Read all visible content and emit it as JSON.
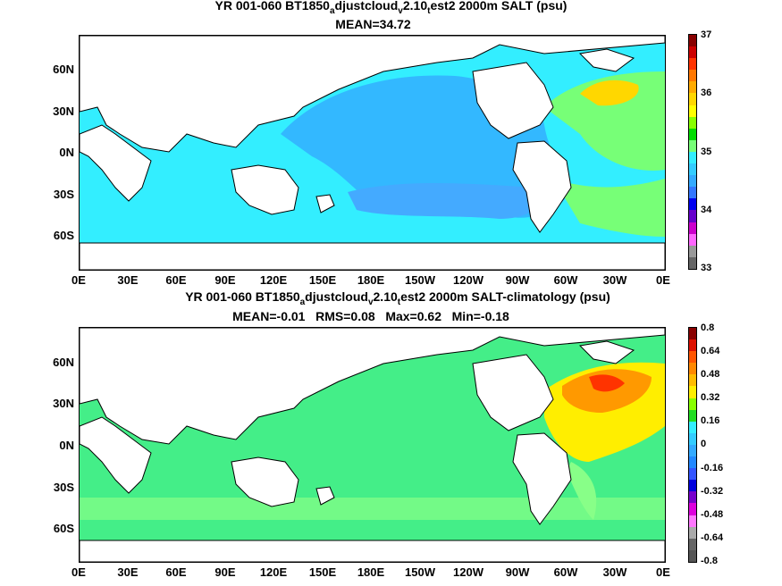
{
  "top": {
    "title_pre": "YR 001-060 BT1850",
    "title_s1": "a",
    "title_m1": "djustcloud",
    "title_s2": "v",
    "title_m2": "2.10",
    "title_s3": "t",
    "title_post": "est2 2000m SALT (psu)",
    "subtitle": "MEAN=34.72",
    "cbar_labels": [
      "37",
      "36",
      "35",
      "34",
      "33"
    ]
  },
  "bottom": {
    "title_pre": "YR 001-060 BT1850",
    "title_s1": "a",
    "title_m1": "djustcloud",
    "title_s2": "v",
    "title_m2": "2.10",
    "title_s3": "t",
    "title_post": "est2 2000m SALT-climatology (psu)",
    "subtitle": "MEAN=-0.01   RMS=0.08   Max=0.62   Min=-0.18",
    "cbar_labels": [
      "0.8",
      "0.64",
      "0.48",
      "0.32",
      "0.16",
      "0",
      "-0.16",
      "-0.32",
      "-0.48",
      "-0.64",
      "-0.8"
    ]
  },
  "lat_labels": [
    "60N",
    "30N",
    "0N",
    "30S",
    "60S"
  ],
  "lon_labels": [
    "0E",
    "30E",
    "60E",
    "90E",
    "120E",
    "150E",
    "180E",
    "150W",
    "120W",
    "90W",
    "60W",
    "30W",
    "0E"
  ],
  "colors": {
    "land": "#ffffff",
    "salt_base": "#33eeff",
    "salt_pacific": "#33b8ff",
    "salt_pacific_deep": "#44aaff",
    "salt_atlantic": "#77ff77",
    "salt_high": "#ffd700",
    "anom_base": "#44ee88",
    "anom_light": "#88ff88",
    "anom_yellow": "#ffee00",
    "anom_orange": "#ff9900",
    "anom_red": "#ff3300"
  },
  "top_cbar_colors": [
    "#880000",
    "#cc0000",
    "#ff3300",
    "#ff7700",
    "#ffaa00",
    "#ffd700",
    "#ffff00",
    "#88ff00",
    "#00dd00",
    "#77ff77",
    "#33eeff",
    "#33ccff",
    "#33aaff",
    "#3377ff",
    "#0000ee",
    "#6600cc",
    "#cc00cc",
    "#ff66ff",
    "#999999",
    "#666666"
  ],
  "bot_cbar_colors": [
    "#880000",
    "#dd1100",
    "#ff5500",
    "#ff8800",
    "#ffbb00",
    "#ffee00",
    "#88ff00",
    "#22dd22",
    "#33eeff",
    "#33ccff",
    "#33aaff",
    "#2288ff",
    "#3355ff",
    "#0000dd",
    "#7700cc",
    "#dd00dd",
    "#ff77ff",
    "#aaaaaa",
    "#666666",
    "#555555"
  ]
}
